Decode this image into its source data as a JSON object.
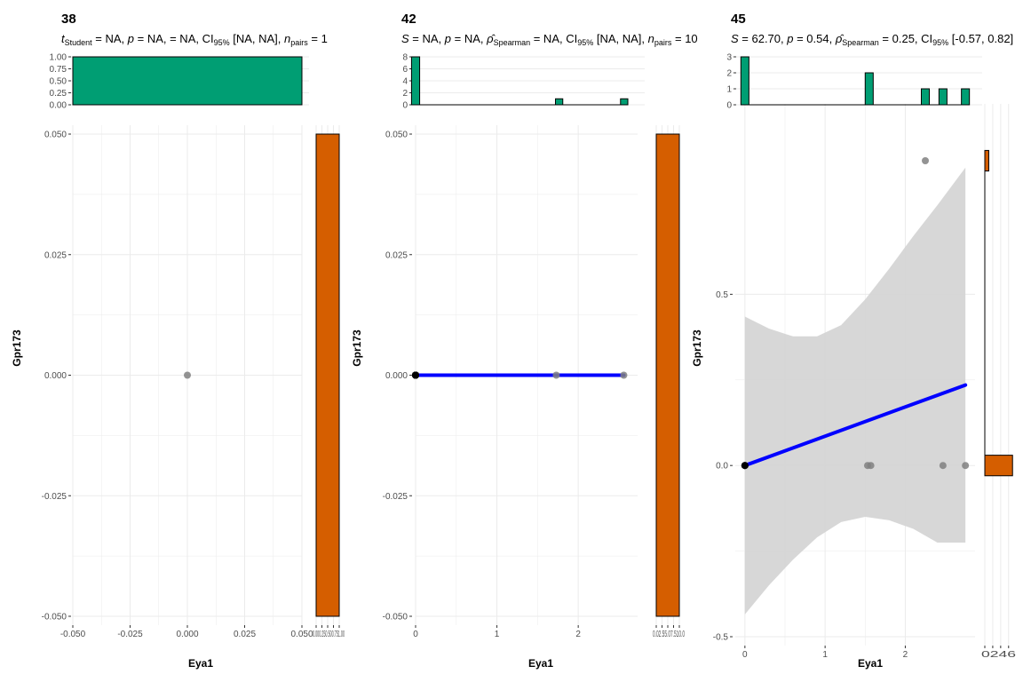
{
  "colors": {
    "hist_top": "#009E73",
    "hist_right": "#D55E00",
    "fit_line": "#0000FF",
    "ci_band": "#D3D3D3",
    "points": "#808080",
    "grid": "#EBEBEB"
  },
  "chart_data": [
    {
      "type": "scatter",
      "panel_title": "38",
      "subtitle": {
        "stat": "t",
        "stat_sub": "Student",
        "stat_val": " = NA, ",
        "p_val": " = NA,  = NA, ",
        "ci_label": "CI",
        "ci_sub": "95%",
        "ci_val": " [NA, NA], ",
        "n_label": "n",
        "n_sub": "pairs",
        "n_val": " = 1"
      },
      "xlabel": "Eya1",
      "ylabel": "Gpr173",
      "xlim": [
        -0.05,
        0.05
      ],
      "ylim": [
        -0.05,
        0.05
      ],
      "x_ticks": [
        "-0.050",
        "-0.025",
        "0.000",
        "0.025",
        "0.050"
      ],
      "x_tick_values": [
        -0.05,
        -0.025,
        0,
        0.025,
        0.05
      ],
      "y_ticks": [
        "-0.050",
        "-0.025",
        "0.000",
        "0.025",
        "0.050"
      ],
      "y_tick_values": [
        -0.05,
        -0.025,
        0,
        0.025,
        0.05
      ],
      "points": [
        [
          0,
          0
        ]
      ],
      "fit": null,
      "top_hist": {
        "xlim": [
          -0.05,
          0.05
        ],
        "ylim": [
          0,
          1
        ],
        "y_ticks": [
          "0.00",
          "0.25",
          "0.50",
          "0.75",
          "1.00"
        ],
        "y_tick_values": [
          0,
          0.25,
          0.5,
          0.75,
          1
        ],
        "bars": [
          {
            "x0": -0.05,
            "x1": 0.05,
            "count": 1
          }
        ]
      },
      "right_hist": {
        "xlim": [
          0,
          1
        ],
        "x_ticks": [
          "0.00",
          "0.25",
          "0.50",
          "0.75",
          "1.00"
        ],
        "x_tick_values": [
          0,
          0.25,
          0.5,
          0.75,
          1
        ],
        "x_tick_text": "0.000.250.500.751.00",
        "bars": [
          {
            "y0": -0.05,
            "y1": 0.05,
            "count": 1
          }
        ]
      }
    },
    {
      "type": "scatter",
      "panel_title": "42",
      "subtitle": {
        "stat": "S",
        "stat_val": " = NA, ",
        "p_val": " = NA, ",
        "rho_sub": "Spearman",
        "rho_val": " = NA, ",
        "ci_label": "CI",
        "ci_sub": "95%",
        "ci_val": " [NA, NA], ",
        "n_label": "n",
        "n_sub": "pairs",
        "n_val": " = 10"
      },
      "xlabel": "Eya1",
      "ylabel": "Gpr173",
      "xlim": [
        0,
        2.73
      ],
      "ylim": [
        -0.05,
        0.05
      ],
      "x_ticks": [
        "0",
        "1",
        "2"
      ],
      "x_tick_values": [
        0,
        1,
        2
      ],
      "y_ticks": [
        "-0.050",
        "-0.025",
        "0.000",
        "0.025",
        "0.050"
      ],
      "y_tick_values": [
        -0.05,
        -0.025,
        0,
        0.025,
        0.05
      ],
      "points": [
        [
          0,
          0
        ],
        [
          0,
          0
        ],
        [
          0,
          0
        ],
        [
          0,
          0
        ],
        [
          0,
          0
        ],
        [
          0,
          0
        ],
        [
          0,
          0
        ],
        [
          0,
          0
        ],
        [
          1.73,
          0
        ],
        [
          2.56,
          0
        ]
      ],
      "fit": {
        "x": [
          0,
          2.56
        ],
        "y": [
          0,
          0
        ]
      },
      "top_hist": {
        "xlim": [
          0,
          2.73
        ],
        "ylim": [
          0,
          8
        ],
        "y_ticks": [
          "0",
          "2",
          "4",
          "6",
          "8"
        ],
        "y_tick_values": [
          0,
          2,
          4,
          6,
          8
        ],
        "bars": [
          {
            "x0": -0.05,
            "x1": 0.05,
            "count": 8
          },
          {
            "x0": 1.72,
            "x1": 1.81,
            "count": 1
          },
          {
            "x0": 2.52,
            "x1": 2.61,
            "count": 1
          }
        ]
      },
      "right_hist": {
        "xlim": [
          0,
          10
        ],
        "x_ticks": [
          "0.0",
          "2.5",
          "5.0",
          "7.5",
          "10.0"
        ],
        "x_tick_values": [
          0,
          2.5,
          5,
          7.5,
          10
        ],
        "x_tick_text": "0.02.55.07.510.0",
        "bars": [
          {
            "y0": -0.05,
            "y1": 0.05,
            "count": 10
          }
        ]
      }
    },
    {
      "type": "scatter",
      "panel_title": "45",
      "subtitle": {
        "stat": "S",
        "stat_val": " = 62.70, ",
        "p_val": " = 0.54, ",
        "rho_sub": "Spearman",
        "rho_val": " = 0.25, ",
        "ci_label": "CI",
        "ci_sub": "95%",
        "ci_val": " [-0.57, 0.82]"
      },
      "xlabel": "Eya1",
      "ylabel": "Gpr173",
      "xlim": [
        -0.12,
        2.87
      ],
      "ylim": [
        -0.5,
        1.03
      ],
      "x_ticks": [
        "0",
        "1",
        "2"
      ],
      "x_tick_values": [
        0,
        1,
        2
      ],
      "y_ticks": [
        "-0.5",
        "0.0",
        "0.5"
      ],
      "y_tick_values": [
        -0.5,
        0,
        0.5
      ],
      "points": [
        [
          0,
          0
        ],
        [
          0,
          0
        ],
        [
          0,
          0
        ],
        [
          1.53,
          0
        ],
        [
          1.57,
          0
        ],
        [
          2.25,
          0.89
        ],
        [
          2.47,
          0
        ],
        [
          2.75,
          0
        ]
      ],
      "fit": {
        "x": [
          0,
          2.75
        ],
        "y": [
          0,
          0.235
        ]
      },
      "ci_band": {
        "x": [
          0,
          0.3,
          0.6,
          0.9,
          1.2,
          1.5,
          1.8,
          2.1,
          2.4,
          2.75
        ],
        "upper": [
          0.435,
          0.4,
          0.377,
          0.377,
          0.41,
          0.485,
          0.575,
          0.67,
          0.76,
          0.87
        ],
        "lower": [
          -0.435,
          -0.35,
          -0.275,
          -0.21,
          -0.165,
          -0.15,
          -0.16,
          -0.185,
          -0.225,
          -0.225
        ]
      },
      "top_hist": {
        "xlim": [
          -0.12,
          2.87
        ],
        "ylim": [
          0,
          3
        ],
        "y_ticks": [
          "0",
          "1",
          "2",
          "3"
        ],
        "y_tick_values": [
          0,
          1,
          2,
          3
        ],
        "bars": [
          {
            "x0": -0.05,
            "x1": 0.05,
            "count": 3
          },
          {
            "x0": 1.5,
            "x1": 1.6,
            "count": 2
          },
          {
            "x0": 2.2,
            "x1": 2.3,
            "count": 1
          },
          {
            "x0": 2.42,
            "x1": 2.52,
            "count": 1
          },
          {
            "x0": 2.7,
            "x1": 2.8,
            "count": 1
          }
        ]
      },
      "right_hist": {
        "xlim": [
          0,
          6.5
        ],
        "x_ticks": [
          "0",
          "2",
          "4",
          "6"
        ],
        "x_tick_values": [
          0,
          2,
          4,
          6
        ],
        "x_tick_text": "0246",
        "bars": [
          {
            "y0": 0.86,
            "y1": 0.92,
            "count": 1
          },
          {
            "y0": -0.03,
            "y1": 0.03,
            "count": 7
          }
        ]
      }
    }
  ]
}
